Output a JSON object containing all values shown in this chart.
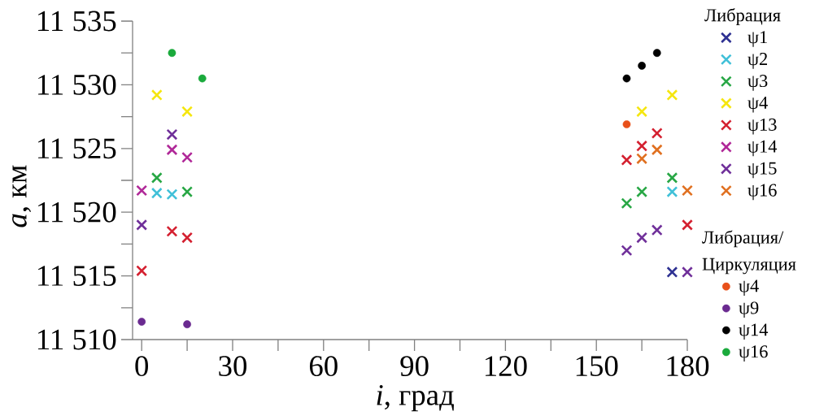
{
  "chart_data": {
    "type": "scatter",
    "xlabel": "*i*, град",
    "ylabel": "*a*, км",
    "legend_title": "Либрация",
    "annotations": [
      "Либрация/ Циркуляция"
    ],
    "xlim": [
      -3,
      180
    ],
    "ylim": [
      11510,
      11535
    ],
    "xticks": [
      0,
      {
        "value": 15,
        "label": null
      },
      30,
      {
        "value": 45,
        "label": null
      },
      60,
      {
        "value": 75,
        "label": null
      },
      90,
      {
        "value": 105,
        "label": null
      },
      120,
      {
        "value": 135,
        "label": null
      },
      150,
      {
        "value": 165,
        "label": null
      },
      180
    ],
    "yticks": [
      {
        "value": 11510,
        "label": "11 510"
      },
      {
        "value": 11512.5,
        "label": null
      },
      {
        "value": 11515,
        "label": "11 515"
      },
      {
        "value": 11517.5,
        "label": null
      },
      {
        "value": 11520,
        "label": "11 520"
      },
      {
        "value": 11522.5,
        "label": null
      },
      {
        "value": 11525,
        "label": "11 525"
      },
      {
        "value": 11527.5,
        "label": null
      },
      {
        "value": 11530,
        "label": "11 530"
      },
      {
        "value": 11532.5,
        "label": null
      },
      {
        "value": 11535,
        "label": "11 535"
      }
    ],
    "grid": false,
    "legend": "right",
    "series": [
      {
        "name": "ψ1",
        "color": "#2e3192",
        "marker": "cross",
        "x": [
          175
        ],
        "values": [
          11515.3
        ]
      },
      {
        "name": "ψ2",
        "color": "#40c0d8",
        "marker": "cross",
        "x": [
          5,
          10,
          175
        ],
        "values": [
          11521.5,
          11521.4,
          11521.6
        ]
      },
      {
        "name": "ψ3",
        "color": "#28a745",
        "marker": "cross",
        "x": [
          5,
          15,
          160,
          165,
          175
        ],
        "values": [
          11522.7,
          11521.6,
          11520.7,
          11521.6,
          11522.7
        ]
      },
      {
        "name": "ψ4",
        "color": "#f5e60f",
        "marker": "cross",
        "x": [
          5,
          15,
          165,
          175
        ],
        "values": [
          11529.2,
          11527.9,
          11527.9,
          11529.2
        ]
      },
      {
        "name": "ψ13",
        "color": "#d42030",
        "marker": "cross",
        "x": [
          0,
          10,
          15,
          160,
          165,
          170,
          180
        ],
        "values": [
          11515.4,
          11518.5,
          11518.0,
          11524.1,
          11525.2,
          11526.2,
          11519.0
        ]
      },
      {
        "name": "ψ14",
        "color": "#b02898",
        "marker": "cross",
        "x": [
          0,
          10,
          15
        ],
        "values": [
          11521.7,
          11524.9,
          11524.3
        ]
      },
      {
        "name": "ψ15",
        "color": "#70309a",
        "marker": "cross",
        "x": [
          0,
          10,
          160,
          165,
          170,
          180
        ],
        "values": [
          11519.0,
          11526.1,
          11517.0,
          11518.0,
          11518.6,
          11515.3
        ]
      },
      {
        "name": "ψ16",
        "color": "#e07020",
        "marker": "cross",
        "x": [
          165,
          170,
          180
        ],
        "values": [
          11524.2,
          11524.9,
          11521.7
        ]
      },
      {
        "name": "ψ4",
        "color": "#e8501a",
        "marker": "circle",
        "x": [
          160
        ],
        "values": [
          11526.9
        ]
      },
      {
        "name": "ψ9",
        "color": "#6a2a90",
        "marker": "circle",
        "x": [
          0,
          15
        ],
        "values": [
          11511.4,
          11511.2
        ]
      },
      {
        "name": "ψ14",
        "color": "#000000",
        "marker": "circle",
        "x": [
          160,
          165,
          170
        ],
        "values": [
          11530.5,
          11531.5,
          11532.5
        ]
      },
      {
        "name": "ψ16",
        "color": "#1aaa3c",
        "marker": "circle",
        "x": [
          10,
          20
        ],
        "values": [
          11532.5,
          11530.5
        ]
      }
    ]
  }
}
